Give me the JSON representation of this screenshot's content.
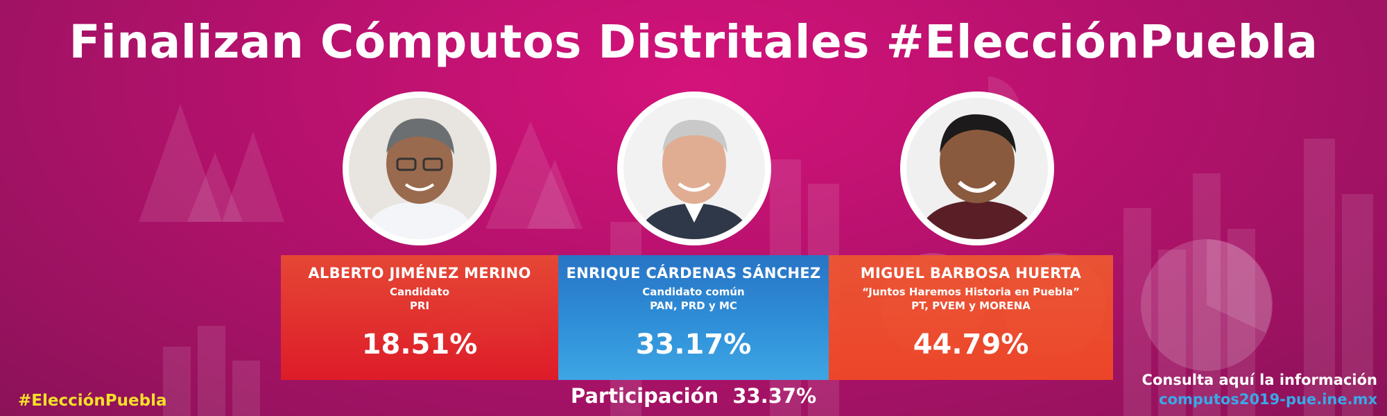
{
  "title": "Finalizan Cómputos Distritales #ElecciónPuebla",
  "candidates": [
    {
      "name": "ALBERTO JIMÉNEZ MERINO",
      "role": "Candidato",
      "party": "PRI",
      "percent": "18.51%"
    },
    {
      "name": "ENRIQUE CÁRDENAS SÁNCHEZ",
      "role": "Candidato común",
      "party": "PAN, PRD y MC",
      "percent": "33.17%"
    },
    {
      "name": "MIGUEL BARBOSA HUERTA",
      "role": "“Juntos Haremos Historia en Puebla”",
      "party": "PT, PVEM y MORENA",
      "percent": "44.79%"
    }
  ],
  "participation": {
    "label": "Participación",
    "value": "33.37%"
  },
  "hashtag": "#ElecciónPuebla",
  "consulta": {
    "line1": "Consulta aquí la información",
    "link": "computos2019-pue.ine.mx"
  },
  "colors": {
    "background": "#b8116e",
    "red_card": "#e01c26",
    "blue_card": "#2f8fd8",
    "orange_card": "#f04826",
    "hashtag": "#f5e02a",
    "link": "#39a9e8"
  },
  "icons": {
    "avatar": "person-photo"
  }
}
